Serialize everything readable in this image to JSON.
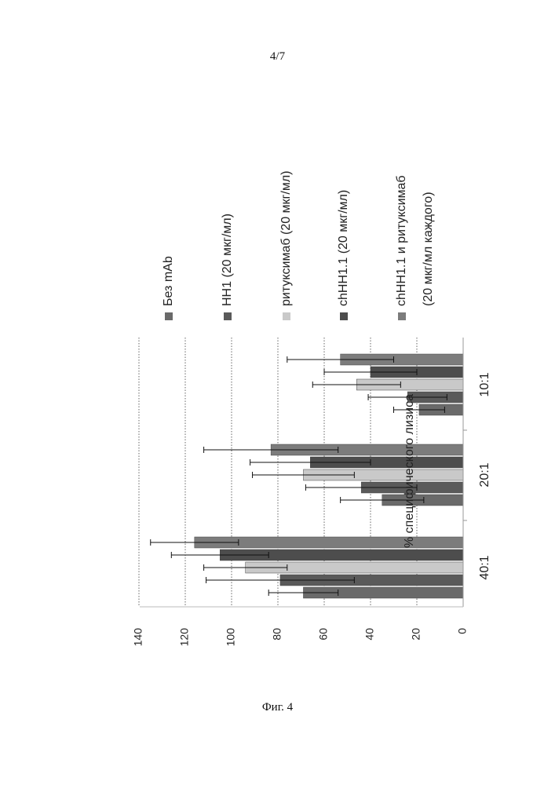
{
  "page": {
    "number": "4/7",
    "caption": "Фиг. 4"
  },
  "colors": {
    "bez_mab": "#6a6a6a",
    "hh1": "#5a5a5a",
    "rituximab": "#c9c9c9",
    "chhh1": "#4d4d4d",
    "combo": "#7c7c7c",
    "grid": "#666666",
    "axis": "#999999",
    "error": "#111111"
  },
  "chart_data": {
    "type": "bar",
    "orientation": "rotated-90-ccw",
    "title": "",
    "xlabel": "",
    "ylabel": "% специфического лизиса",
    "ylim": [
      0,
      140
    ],
    "yticks": [
      "0",
      "20",
      "40",
      "60",
      "80",
      "100",
      "120",
      "140"
    ],
    "grid": "horizontal-dotted",
    "legend_position": "right",
    "categories": [
      "40:1",
      "20:1",
      "10:1"
    ],
    "series": [
      {
        "name": "Без mAb",
        "color_key": "bez_mab",
        "legend_lines": [
          "Без mAb"
        ],
        "values": [
          69,
          35,
          19
        ],
        "errors": [
          15,
          18,
          11
        ]
      },
      {
        "name": "HH1 (20 мкг/мл)",
        "color_key": "hh1",
        "legend_lines": [
          "HH1 (20 мкг/мл)"
        ],
        "values": [
          79,
          44,
          24
        ],
        "errors": [
          32,
          24,
          17
        ]
      },
      {
        "name": "ритуксимаб (20 мкг/мл)",
        "color_key": "rituximab",
        "legend_lines": [
          "ритуксимаб (20 мкг/мл)"
        ],
        "values": [
          94,
          69,
          46
        ],
        "errors": [
          18,
          22,
          19
        ]
      },
      {
        "name": "chHH1.1 (20 мкг/мл)",
        "color_key": "chhh1",
        "legend_lines": [
          "chHH1.1 (20 мкг/мл)"
        ],
        "values": [
          105,
          66,
          40
        ],
        "errors": [
          21,
          26,
          20
        ]
      },
      {
        "name": "chHH1.1 и ритуксимаб (20 мкг/мл каждого)",
        "color_key": "combo",
        "legend_lines": [
          "chHH1.1 и ритуксимаб",
          "(20 мкг/мл каждого)"
        ],
        "values": [
          116,
          83,
          53
        ],
        "errors": [
          19,
          29,
          23
        ]
      }
    ]
  }
}
